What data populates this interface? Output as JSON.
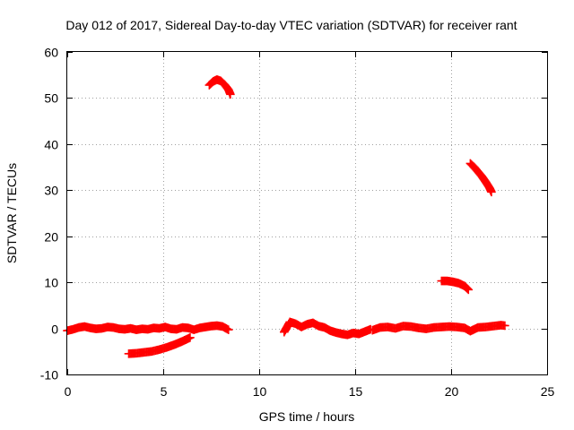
{
  "chart_data": {
    "type": "scatter",
    "title": "Day 012 of 2017, Sidereal Day-to-day VTEC variation (SDTVAR) for receiver rant",
    "xlabel": "GPS time / hours",
    "ylabel": "SDTVAR / TECUs",
    "xlim": [
      0,
      25
    ],
    "ylim": [
      -10,
      60
    ],
    "x_ticks": [
      "0",
      "5",
      "10",
      "15",
      "20",
      "25"
    ],
    "y_ticks": [
      "-10",
      "0",
      "10",
      "20",
      "30",
      "40",
      "50",
      "60"
    ],
    "grid": true,
    "marker": "plus",
    "color": "#ff0000",
    "series": [
      {
        "x": [
          0.0,
          0.3,
          0.6,
          0.9,
          1.2,
          1.5,
          1.8,
          2.1,
          2.4,
          2.7,
          3.0,
          3.3,
          3.6,
          3.9,
          4.2,
          4.5,
          4.8,
          5.1,
          5.4,
          5.7,
          6.0,
          6.3,
          6.6,
          6.9,
          7.2,
          7.5,
          7.8,
          8.1,
          8.4
        ],
        "y": [
          -0.5,
          -0.2,
          0.2,
          0.4,
          0.1,
          -0.1,
          0.0,
          0.3,
          0.2,
          -0.1,
          -0.2,
          0.0,
          -0.3,
          -0.1,
          -0.2,
          0.1,
          0.0,
          0.3,
          -0.1,
          -0.2,
          0.2,
          0.1,
          -0.3,
          0.1,
          0.3,
          0.5,
          0.6,
          0.4,
          -0.3
        ]
      },
      {
        "x": [
          3.2,
          3.6,
          4.0,
          4.4,
          4.8,
          5.2,
          5.6,
          6.0,
          6.4
        ],
        "y": [
          -5.5,
          -5.4,
          -5.2,
          -5.0,
          -4.6,
          -4.1,
          -3.5,
          -2.8,
          -2.0
        ]
      },
      {
        "x": [
          7.4,
          7.6,
          7.8,
          8.0,
          8.2,
          8.4,
          8.5
        ],
        "y": [
          52.8,
          53.6,
          54.0,
          53.7,
          52.9,
          51.8,
          50.8
        ]
      },
      {
        "x": [
          11.3,
          11.6,
          11.9,
          12.2,
          12.5,
          12.8,
          13.1,
          13.4,
          13.7,
          14.0,
          14.3,
          14.6,
          14.9,
          15.2,
          15.5,
          15.8
        ],
        "y": [
          -0.8,
          1.4,
          1.0,
          0.3,
          0.9,
          1.2,
          0.5,
          0.2,
          -0.5,
          -0.9,
          -1.2,
          -1.4,
          -1.0,
          -1.2,
          -0.7,
          -0.2
        ]
      },
      {
        "x": [
          15.9,
          16.3,
          16.7,
          17.1,
          17.5,
          17.9,
          18.3,
          18.7,
          19.1,
          19.5,
          19.9,
          20.3,
          20.7,
          21.0,
          21.4,
          21.8,
          22.2,
          22.6,
          22.8
        ],
        "y": [
          -0.4,
          0.2,
          0.3,
          0.0,
          0.5,
          0.4,
          0.1,
          -0.1,
          0.2,
          0.3,
          0.4,
          0.3,
          0.1,
          -0.6,
          0.2,
          0.3,
          0.5,
          0.7,
          0.6
        ]
      },
      {
        "x": [
          19.5,
          19.8,
          20.1,
          20.4,
          20.7,
          20.9
        ],
        "y": [
          10.3,
          10.3,
          10.1,
          9.8,
          9.2,
          8.4
        ]
      },
      {
        "x": [
          21.0,
          21.2,
          21.4,
          21.6,
          21.8,
          22.0,
          22.1
        ],
        "y": [
          35.8,
          35.0,
          34.0,
          33.0,
          31.8,
          30.5,
          29.6
        ]
      }
    ]
  }
}
